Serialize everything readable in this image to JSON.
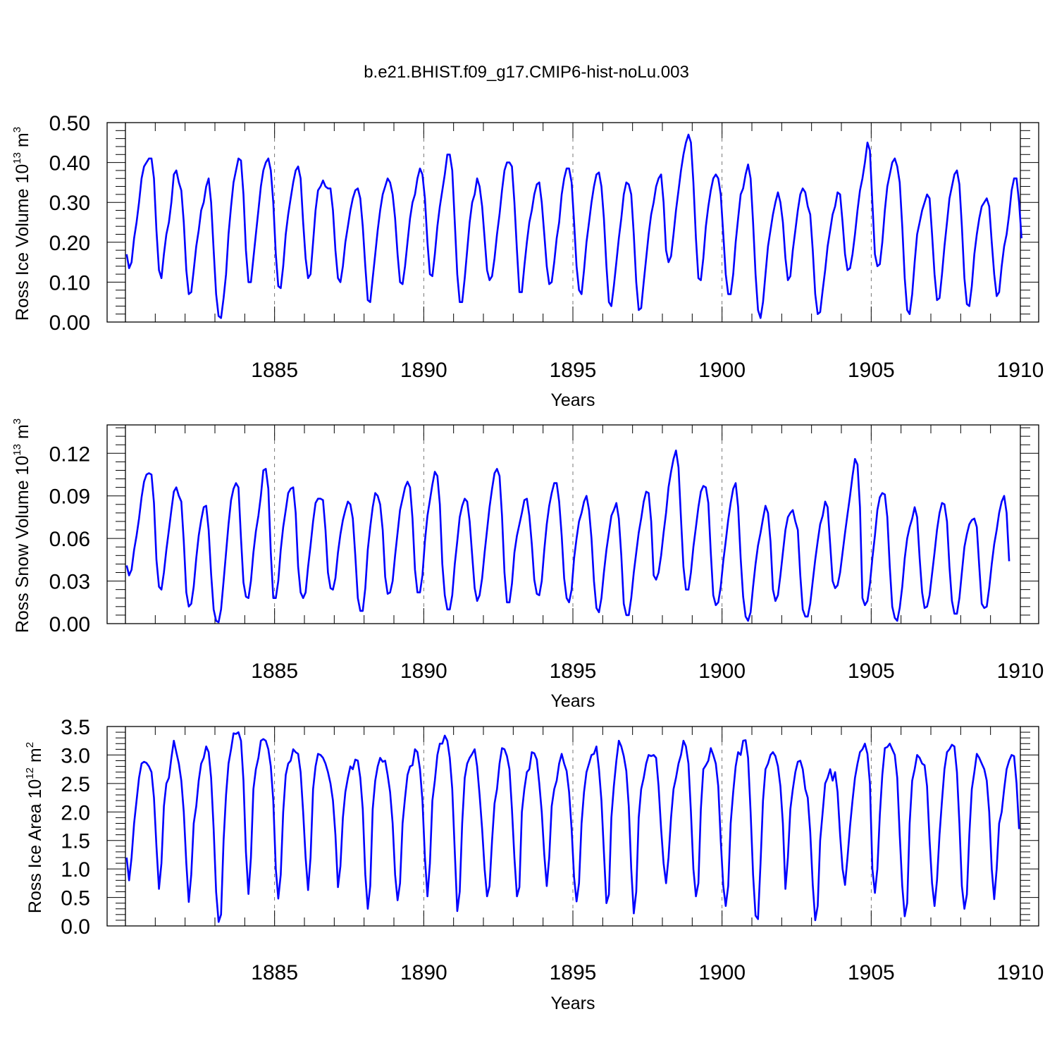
{
  "title": "b.e21.BHIST.f09_g17.CMIP6-hist-noLu.003",
  "colors": {
    "series": "#0000ff",
    "axes": "#000000",
    "grid": "#555555",
    "background": "#ffffff"
  },
  "chart_data": [
    {
      "type": "line",
      "panel": "ross-ice-volume",
      "ylabel": {
        "main": "Ross Ice Volume 10",
        "sup": "13",
        "unit": " m",
        "unit_sup": "3"
      },
      "xlabel": "Years",
      "xlim": [
        1880.0,
        1910.0
      ],
      "ylim": [
        0.0,
        0.5
      ],
      "x_ticks": [
        1885,
        1890,
        1895,
        1900,
        1905,
        1910
      ],
      "x_tick_labels": [
        "1885",
        "1890",
        "1895",
        "1900",
        "1905",
        "1910"
      ],
      "y_ticks": [
        0.0,
        0.1,
        0.2,
        0.3,
        0.4,
        0.5
      ],
      "y_tick_labels": [
        "0.00",
        "0.10",
        "0.20",
        "0.30",
        "0.40",
        "0.50"
      ],
      "grid": "vertical dashed at major x ticks",
      "x_start": 1880.04,
      "x_step": 0.0833333,
      "values": [
        0.17,
        0.135,
        0.15,
        0.21,
        0.25,
        0.3,
        0.36,
        0.39,
        0.4,
        0.41,
        0.41,
        0.36,
        0.23,
        0.13,
        0.11,
        0.17,
        0.22,
        0.25,
        0.3,
        0.37,
        0.38,
        0.35,
        0.33,
        0.25,
        0.13,
        0.07,
        0.075,
        0.13,
        0.19,
        0.23,
        0.28,
        0.3,
        0.34,
        0.36,
        0.3,
        0.18,
        0.07,
        0.015,
        0.01,
        0.06,
        0.12,
        0.22,
        0.29,
        0.35,
        0.38,
        0.41,
        0.405,
        0.32,
        0.18,
        0.1,
        0.1,
        0.16,
        0.22,
        0.28,
        0.34,
        0.38,
        0.4,
        0.41,
        0.38,
        0.3,
        0.17,
        0.09,
        0.085,
        0.14,
        0.22,
        0.27,
        0.31,
        0.35,
        0.38,
        0.39,
        0.36,
        0.25,
        0.16,
        0.11,
        0.12,
        0.2,
        0.28,
        0.33,
        0.34,
        0.355,
        0.34,
        0.335,
        0.335,
        0.28,
        0.18,
        0.11,
        0.1,
        0.14,
        0.2,
        0.24,
        0.28,
        0.31,
        0.33,
        0.335,
        0.31,
        0.24,
        0.14,
        0.055,
        0.05,
        0.11,
        0.17,
        0.23,
        0.28,
        0.32,
        0.34,
        0.36,
        0.35,
        0.32,
        0.26,
        0.17,
        0.1,
        0.095,
        0.14,
        0.2,
        0.26,
        0.3,
        0.32,
        0.36,
        0.385,
        0.37,
        0.31,
        0.2,
        0.12,
        0.115,
        0.17,
        0.24,
        0.29,
        0.33,
        0.37,
        0.42,
        0.42,
        0.38,
        0.25,
        0.12,
        0.05,
        0.05,
        0.11,
        0.18,
        0.25,
        0.3,
        0.32,
        0.36,
        0.34,
        0.29,
        0.21,
        0.13,
        0.105,
        0.115,
        0.16,
        0.22,
        0.27,
        0.33,
        0.38,
        0.4,
        0.4,
        0.39,
        0.3,
        0.18,
        0.075,
        0.075,
        0.14,
        0.2,
        0.25,
        0.28,
        0.32,
        0.345,
        0.35,
        0.3,
        0.22,
        0.14,
        0.095,
        0.1,
        0.15,
        0.21,
        0.25,
        0.32,
        0.36,
        0.385,
        0.385,
        0.35,
        0.25,
        0.14,
        0.08,
        0.07,
        0.13,
        0.2,
        0.25,
        0.3,
        0.34,
        0.37,
        0.375,
        0.34,
        0.26,
        0.14,
        0.05,
        0.04,
        0.09,
        0.15,
        0.21,
        0.26,
        0.32,
        0.35,
        0.345,
        0.32,
        0.22,
        0.1,
        0.03,
        0.035,
        0.1,
        0.16,
        0.22,
        0.27,
        0.3,
        0.34,
        0.36,
        0.37,
        0.3,
        0.18,
        0.15,
        0.165,
        0.22,
        0.28,
        0.33,
        0.38,
        0.42,
        0.45,
        0.47,
        0.45,
        0.35,
        0.21,
        0.11,
        0.105,
        0.16,
        0.24,
        0.29,
        0.33,
        0.36,
        0.37,
        0.36,
        0.32,
        0.22,
        0.12,
        0.07,
        0.07,
        0.12,
        0.2,
        0.26,
        0.32,
        0.335,
        0.37,
        0.395,
        0.36,
        0.25,
        0.12,
        0.03,
        0.01,
        0.05,
        0.12,
        0.19,
        0.23,
        0.27,
        0.3,
        0.325,
        0.3,
        0.25,
        0.16,
        0.105,
        0.115,
        0.18,
        0.23,
        0.28,
        0.32,
        0.335,
        0.325,
        0.29,
        0.27,
        0.18,
        0.07,
        0.02,
        0.025,
        0.08,
        0.13,
        0.19,
        0.23,
        0.27,
        0.29,
        0.325,
        0.32,
        0.25,
        0.17,
        0.13,
        0.135,
        0.17,
        0.22,
        0.28,
        0.33,
        0.36,
        0.4,
        0.45,
        0.43,
        0.3,
        0.17,
        0.14,
        0.145,
        0.2,
        0.28,
        0.34,
        0.37,
        0.4,
        0.41,
        0.39,
        0.35,
        0.24,
        0.11,
        0.03,
        0.02,
        0.07,
        0.15,
        0.22,
        0.25,
        0.28,
        0.3,
        0.32,
        0.31,
        0.22,
        0.12,
        0.055,
        0.06,
        0.12,
        0.19,
        0.25,
        0.31,
        0.34,
        0.37,
        0.38,
        0.345,
        0.24,
        0.11,
        0.045,
        0.04,
        0.09,
        0.17,
        0.22,
        0.26,
        0.29,
        0.3,
        0.31,
        0.29,
        0.2,
        0.12,
        0.065,
        0.075,
        0.14,
        0.19,
        0.22,
        0.27,
        0.33,
        0.36,
        0.36,
        0.3,
        0.21
      ]
    },
    {
      "type": "line",
      "panel": "ross-snow-volume",
      "ylabel": {
        "main": "Ross Snow Volume 10",
        "sup": "13",
        "unit": " m",
        "unit_sup": "3"
      },
      "xlabel": "Years",
      "xlim": [
        1880.0,
        1910.0
      ],
      "ylim": [
        0.0,
        0.14
      ],
      "x_ticks": [
        1885,
        1890,
        1895,
        1900,
        1905,
        1910
      ],
      "x_tick_labels": [
        "1885",
        "1890",
        "1895",
        "1900",
        "1905",
        "1910"
      ],
      "y_ticks": [
        0.0,
        0.03,
        0.06,
        0.09,
        0.12
      ],
      "y_tick_labels": [
        "0.00",
        "0.03",
        "0.06",
        "0.09",
        "0.12"
      ],
      "grid": "vertical dashed at major x ticks",
      "x_start": 1880.04,
      "x_step": 0.0833333,
      "values": [
        0.041,
        0.034,
        0.038,
        0.052,
        0.062,
        0.074,
        0.089,
        0.1,
        0.105,
        0.106,
        0.105,
        0.085,
        0.045,
        0.026,
        0.024,
        0.036,
        0.052,
        0.066,
        0.08,
        0.093,
        0.096,
        0.09,
        0.086,
        0.058,
        0.022,
        0.012,
        0.014,
        0.026,
        0.046,
        0.062,
        0.073,
        0.082,
        0.083,
        0.066,
        0.035,
        0.01,
        0.002,
        0.001,
        0.01,
        0.03,
        0.05,
        0.07,
        0.087,
        0.095,
        0.099,
        0.096,
        0.06,
        0.029,
        0.019,
        0.018,
        0.03,
        0.05,
        0.065,
        0.076,
        0.09,
        0.108,
        0.109,
        0.095,
        0.05,
        0.018,
        0.018,
        0.03,
        0.052,
        0.068,
        0.08,
        0.092,
        0.095,
        0.096,
        0.078,
        0.04,
        0.022,
        0.018,
        0.022,
        0.04,
        0.055,
        0.072,
        0.085,
        0.088,
        0.088,
        0.087,
        0.066,
        0.036,
        0.025,
        0.024,
        0.032,
        0.05,
        0.063,
        0.073,
        0.08,
        0.086,
        0.084,
        0.074,
        0.048,
        0.018,
        0.009,
        0.009,
        0.025,
        0.052,
        0.068,
        0.082,
        0.092,
        0.09,
        0.084,
        0.066,
        0.033,
        0.021,
        0.022,
        0.03,
        0.048,
        0.064,
        0.08,
        0.088,
        0.096,
        0.1,
        0.096,
        0.074,
        0.038,
        0.022,
        0.022,
        0.034,
        0.058,
        0.076,
        0.087,
        0.098,
        0.107,
        0.104,
        0.084,
        0.042,
        0.02,
        0.01,
        0.01,
        0.02,
        0.042,
        0.058,
        0.075,
        0.083,
        0.088,
        0.086,
        0.072,
        0.048,
        0.025,
        0.016,
        0.02,
        0.032,
        0.05,
        0.066,
        0.082,
        0.095,
        0.106,
        0.109,
        0.104,
        0.076,
        0.036,
        0.015,
        0.015,
        0.028,
        0.05,
        0.062,
        0.07,
        0.078,
        0.087,
        0.088,
        0.076,
        0.056,
        0.031,
        0.021,
        0.02,
        0.03,
        0.052,
        0.07,
        0.083,
        0.092,
        0.099,
        0.099,
        0.086,
        0.062,
        0.032,
        0.018,
        0.015,
        0.024,
        0.046,
        0.06,
        0.072,
        0.078,
        0.086,
        0.09,
        0.08,
        0.06,
        0.03,
        0.011,
        0.008,
        0.018,
        0.036,
        0.052,
        0.064,
        0.076,
        0.08,
        0.085,
        0.074,
        0.048,
        0.014,
        0.006,
        0.006,
        0.018,
        0.036,
        0.05,
        0.064,
        0.074,
        0.086,
        0.093,
        0.092,
        0.072,
        0.034,
        0.031,
        0.036,
        0.048,
        0.064,
        0.078,
        0.096,
        0.107,
        0.116,
        0.122,
        0.11,
        0.074,
        0.04,
        0.024,
        0.024,
        0.036,
        0.054,
        0.068,
        0.082,
        0.093,
        0.097,
        0.096,
        0.085,
        0.05,
        0.02,
        0.013,
        0.015,
        0.026,
        0.044,
        0.058,
        0.073,
        0.085,
        0.095,
        0.099,
        0.082,
        0.046,
        0.019,
        0.005,
        0.002,
        0.008,
        0.026,
        0.042,
        0.055,
        0.064,
        0.074,
        0.083,
        0.078,
        0.058,
        0.024,
        0.016,
        0.02,
        0.034,
        0.05,
        0.066,
        0.075,
        0.078,
        0.08,
        0.072,
        0.066,
        0.034,
        0.01,
        0.005,
        0.005,
        0.014,
        0.03,
        0.045,
        0.058,
        0.07,
        0.076,
        0.086,
        0.082,
        0.056,
        0.03,
        0.025,
        0.027,
        0.036,
        0.05,
        0.064,
        0.077,
        0.09,
        0.104,
        0.116,
        0.112,
        0.082,
        0.018,
        0.013,
        0.016,
        0.028,
        0.046,
        0.062,
        0.08,
        0.089,
        0.092,
        0.091,
        0.075,
        0.04,
        0.012,
        0.004,
        0.002,
        0.011,
        0.026,
        0.046,
        0.06,
        0.068,
        0.074,
        0.082,
        0.075,
        0.046,
        0.022,
        0.011,
        0.012,
        0.02,
        0.035,
        0.05,
        0.066,
        0.078,
        0.085,
        0.084,
        0.072,
        0.04,
        0.016,
        0.007,
        0.007,
        0.018,
        0.036,
        0.054,
        0.063,
        0.07,
        0.073,
        0.074,
        0.068,
        0.04,
        0.014,
        0.011,
        0.012,
        0.025,
        0.042,
        0.056,
        0.066,
        0.078,
        0.086,
        0.09,
        0.078,
        0.044
      ]
    },
    {
      "type": "line",
      "panel": "ross-ice-area",
      "ylabel": {
        "main": "Ross Ice Area 10",
        "sup": "12",
        "unit": " m",
        "unit_sup": "2"
      },
      "xlabel": "Years",
      "xlim": [
        1880.0,
        1910.0
      ],
      "ylim": [
        0.0,
        3.5
      ],
      "x_ticks": [
        1885,
        1890,
        1895,
        1900,
        1905,
        1910
      ],
      "x_tick_labels": [
        "1885",
        "1890",
        "1895",
        "1900",
        "1905",
        "1910"
      ],
      "y_ticks": [
        0.0,
        0.5,
        1.0,
        1.5,
        2.0,
        2.5,
        3.0,
        3.5
      ],
      "y_tick_labels": [
        "0.0",
        "0.5",
        "1.0",
        "1.5",
        "2.0",
        "2.5",
        "3.0",
        "3.5"
      ],
      "grid": "vertical dashed at major x ticks",
      "x_start": 1880.04,
      "x_step": 0.0833333,
      "values": [
        1.2,
        0.8,
        1.2,
        1.8,
        2.2,
        2.6,
        2.85,
        2.88,
        2.86,
        2.8,
        2.7,
        2.25,
        1.4,
        0.65,
        1.1,
        2.1,
        2.5,
        2.6,
        2.95,
        3.25,
        3.05,
        2.85,
        2.55,
        2.0,
        1.1,
        0.42,
        0.9,
        1.8,
        2.1,
        2.55,
        2.85,
        2.95,
        3.15,
        3.05,
        2.6,
        1.7,
        0.6,
        0.07,
        0.2,
        1.5,
        2.3,
        2.85,
        3.1,
        3.38,
        3.37,
        3.4,
        3.25,
        2.55,
        1.3,
        0.56,
        1.2,
        2.4,
        2.75,
        2.95,
        3.25,
        3.28,
        3.25,
        3.1,
        2.8,
        2.2,
        1.0,
        0.48,
        0.9,
        2.0,
        2.65,
        2.85,
        2.9,
        3.1,
        3.05,
        3.02,
        2.7,
        2.0,
        1.2,
        0.63,
        1.2,
        2.4,
        2.8,
        3.02,
        3.0,
        2.95,
        2.85,
        2.7,
        2.5,
        2.2,
        1.6,
        0.68,
        1.05,
        1.9,
        2.35,
        2.6,
        2.8,
        2.75,
        2.92,
        2.9,
        2.6,
        2.05,
        0.9,
        0.3,
        0.7,
        2.05,
        2.55,
        2.8,
        2.95,
        2.88,
        2.9,
        2.65,
        2.35,
        1.8,
        0.9,
        0.45,
        0.75,
        1.8,
        2.25,
        2.65,
        2.8,
        2.82,
        3.1,
        3.05,
        2.75,
        2.2,
        1.2,
        0.52,
        1.1,
        2.2,
        2.55,
        3.0,
        3.2,
        3.2,
        3.34,
        3.25,
        2.95,
        2.4,
        1.3,
        0.26,
        0.6,
        1.8,
        2.6,
        2.85,
        2.95,
        3.02,
        3.1,
        2.8,
        2.3,
        1.7,
        1.0,
        0.52,
        0.7,
        1.5,
        2.15,
        2.4,
        2.85,
        3.12,
        3.1,
        2.98,
        2.75,
        2.05,
        1.2,
        0.52,
        0.68,
        2.0,
        2.4,
        2.7,
        2.75,
        3.05,
        3.03,
        2.92,
        2.5,
        2.0,
        1.25,
        0.7,
        1.2,
        2.1,
        2.4,
        2.55,
        2.85,
        3.02,
        2.85,
        2.72,
        2.35,
        1.7,
        0.85,
        0.43,
        0.75,
        1.8,
        2.35,
        2.7,
        2.85,
        3.0,
        3.02,
        3.15,
        2.75,
        2.2,
        1.3,
        0.4,
        0.55,
        1.9,
        2.45,
        2.9,
        3.25,
        3.15,
        2.98,
        2.72,
        2.1,
        1.0,
        0.22,
        0.6,
        1.9,
        2.4,
        2.6,
        2.85,
        3.0,
        2.98,
        3.0,
        2.95,
        2.45,
        1.7,
        1.1,
        0.75,
        1.2,
        1.9,
        2.4,
        2.6,
        2.85,
        3.0,
        3.25,
        3.15,
        2.85,
        2.0,
        1.0,
        0.52,
        0.75,
        2.05,
        2.75,
        2.82,
        2.9,
        3.12,
        3.0,
        2.85,
        2.45,
        1.5,
        0.7,
        0.35,
        0.7,
        1.8,
        2.35,
        2.8,
        3.05,
        3.0,
        3.25,
        3.26,
        2.95,
        2.0,
        0.9,
        0.18,
        0.12,
        1.1,
        2.2,
        2.75,
        2.85,
        3.0,
        3.05,
        2.98,
        2.8,
        2.45,
        1.8,
        0.65,
        1.2,
        2.05,
        2.4,
        2.7,
        2.88,
        2.9,
        2.75,
        2.4,
        2.25,
        1.65,
        0.72,
        0.1,
        0.35,
        1.5,
        2.0,
        2.5,
        2.6,
        2.75,
        2.55,
        2.7,
        2.35,
        1.6,
        1.0,
        0.72,
        1.2,
        1.75,
        2.2,
        2.6,
        2.85,
        3.05,
        3.1,
        3.2,
        3.02,
        2.5,
        1.0,
        0.58,
        1.0,
        1.95,
        2.65,
        3.12,
        3.14,
        3.2,
        3.1,
        3.0,
        2.6,
        1.6,
        0.7,
        0.17,
        0.4,
        1.8,
        2.55,
        2.75,
        3.0,
        2.95,
        2.85,
        2.82,
        2.45,
        1.5,
        0.75,
        0.35,
        0.8,
        1.6,
        2.2,
        2.75,
        3.05,
        3.1,
        3.18,
        3.15,
        2.7,
        1.8,
        0.7,
        0.3,
        0.55,
        1.6,
        2.4,
        2.7,
        3.02,
        2.95,
        2.85,
        2.75,
        2.55,
        2.0,
        1.0,
        0.47,
        1.0,
        1.8,
        2.0,
        2.4,
        2.75,
        2.9,
        3.0,
        2.98,
        2.5,
        1.7
      ]
    }
  ]
}
